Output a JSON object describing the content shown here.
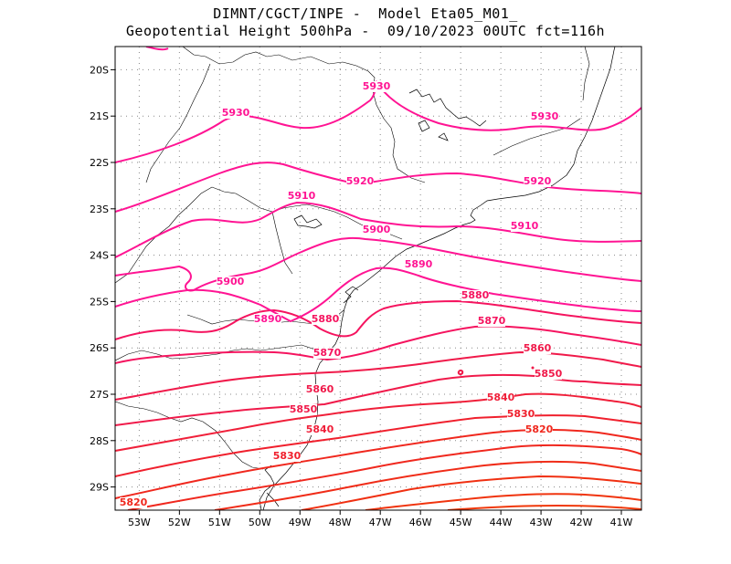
{
  "header": {
    "line1": "DIMNT/CGCT/INPE -  Model Eta05_M01_",
    "line2": "Geopotential Height 500hPa -  09/10/2023 00UTC fct=116h"
  },
  "map": {
    "lon_range": [
      -53.6,
      -40.5
    ],
    "lat_range": [
      -29.5,
      -19.5
    ],
    "lon_ticks": [
      "53W",
      "52W",
      "51W",
      "50W",
      "49W",
      "48W",
      "47W",
      "46W",
      "45W",
      "44W",
      "43W",
      "42W",
      "41W"
    ],
    "lat_ticks": [
      "20S",
      "21S",
      "22S",
      "23S",
      "24S",
      "25S",
      "26S",
      "27S",
      "28S",
      "29S"
    ]
  },
  "contours": [
    {
      "value": "5930",
      "color": "#ff1493"
    },
    {
      "value": "5920",
      "color": "#ff1493"
    },
    {
      "value": "5910",
      "color": "#ff1493"
    },
    {
      "value": "5900",
      "color": "#ff1493"
    },
    {
      "value": "5890",
      "color": "#ff1493"
    },
    {
      "value": "5880",
      "color": "#f5145f"
    },
    {
      "value": "5870",
      "color": "#f5145f"
    },
    {
      "value": "5860",
      "color": "#f01a4a"
    },
    {
      "value": "5850",
      "color": "#f01a4a"
    },
    {
      "value": "5840",
      "color": "#f0203a"
    },
    {
      "value": "5830",
      "color": "#f0202d"
    },
    {
      "value": "5820",
      "color": "#f0281e"
    }
  ],
  "labels": [
    {
      "text": "5930"
    },
    {
      "text": "5930"
    },
    {
      "text": "5930"
    },
    {
      "text": "5920"
    },
    {
      "text": "5920"
    },
    {
      "text": "5910"
    },
    {
      "text": "5910"
    },
    {
      "text": "5900"
    },
    {
      "text": "5900"
    },
    {
      "text": "5890"
    },
    {
      "text": "5890"
    },
    {
      "text": "5880"
    },
    {
      "text": "5880"
    },
    {
      "text": "5870"
    },
    {
      "text": "5870"
    },
    {
      "text": "5860"
    },
    {
      "text": "5860"
    },
    {
      "text": "5850"
    },
    {
      "text": "5850"
    },
    {
      "text": "5840"
    },
    {
      "text": "5840"
    },
    {
      "text": "5830"
    },
    {
      "text": "5830"
    },
    {
      "text": "5820"
    },
    {
      "text": "5820"
    }
  ]
}
